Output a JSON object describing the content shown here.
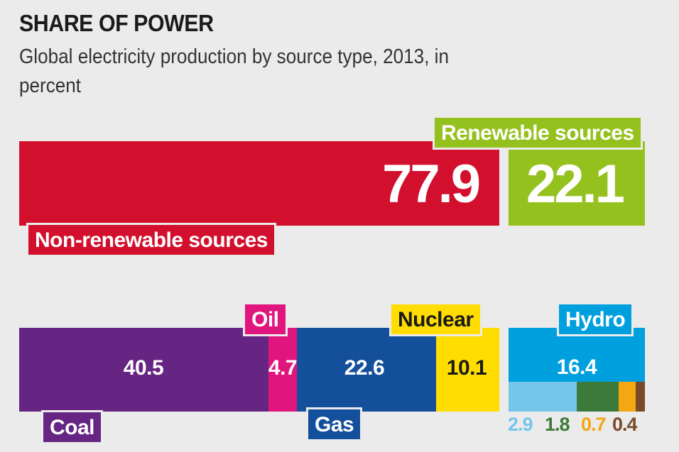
{
  "title": "SHARE OF POWER",
  "subtitle": "Global electricity production by source type, 2013, in percent",
  "chart_data": {
    "type": "bar",
    "groups": [
      {
        "name": "Non-renewable sources",
        "value": 77.9,
        "color": "#d20f2d",
        "parts": [
          {
            "name": "Coal",
            "value": 40.5,
            "color": "#662483"
          },
          {
            "name": "Oil",
            "value": 4.7,
            "color": "#e0157e"
          },
          {
            "name": "Gas",
            "value": 22.6,
            "color": "#144f9b"
          },
          {
            "name": "Nuclear",
            "value": 10.1,
            "color": "#ffdd00"
          }
        ]
      },
      {
        "name": "Renewable sources",
        "value": 22.1,
        "color": "#95c11f",
        "parts": [
          {
            "name": "Hydro",
            "value": 16.4,
            "color": "#009fde"
          },
          {
            "name": "",
            "value": 2.9,
            "color": "#76c6ec"
          },
          {
            "name": "",
            "value": 1.8,
            "color": "#3c7a3b"
          },
          {
            "name": "",
            "value": 0.7,
            "color": "#f3a712"
          },
          {
            "name": "",
            "value": 0.4,
            "color": "#7a4a2a"
          }
        ]
      }
    ],
    "labels": {
      "non_renewable_total": "77.9",
      "renewable_total": "22.1",
      "coal": "40.5",
      "oil": "4.7",
      "gas": "22.6",
      "nuclear": "10.1",
      "hydro": "16.4",
      "small_1": "2.9",
      "small_2": "1.8",
      "small_3": "0.7",
      "small_4": "0.4"
    }
  }
}
